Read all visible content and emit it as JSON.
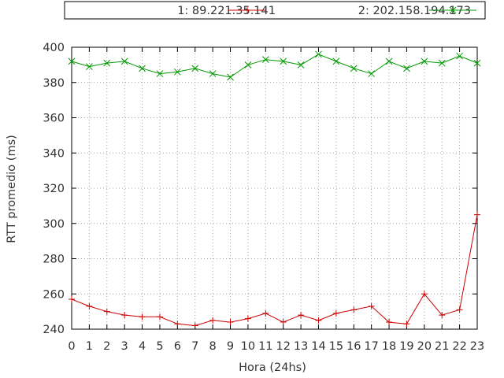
{
  "chart_data": {
    "type": "line",
    "title": "",
    "xlabel": "Hora (24hs)",
    "ylabel": "RTT promedio (ms)",
    "x": [
      0,
      1,
      2,
      3,
      4,
      5,
      6,
      7,
      8,
      9,
      10,
      11,
      12,
      13,
      14,
      15,
      16,
      17,
      18,
      19,
      20,
      21,
      22,
      23
    ],
    "xlim": [
      0,
      23
    ],
    "ylim": [
      240,
      400
    ],
    "yticks": [
      240,
      260,
      280,
      300,
      320,
      340,
      360,
      380,
      400
    ],
    "grid": true,
    "legend": "top",
    "series": [
      {
        "name": "1: 89.221.35.141",
        "marker": "+",
        "color": "#cc0000",
        "values": [
          257,
          253,
          250,
          248,
          247,
          247,
          243,
          242,
          245,
          244,
          246,
          249,
          244,
          248,
          245,
          249,
          251,
          253,
          244,
          243,
          260,
          248,
          251,
          305
        ]
      },
      {
        "name": "2: 202.158.194.173",
        "marker": "x",
        "color": "#009900",
        "values": [
          392,
          389,
          391,
          392,
          388,
          385,
          386,
          388,
          385,
          383,
          390,
          393,
          392,
          390,
          396,
          392,
          388,
          385,
          392,
          388,
          392,
          391,
          395,
          391
        ]
      }
    ]
  }
}
